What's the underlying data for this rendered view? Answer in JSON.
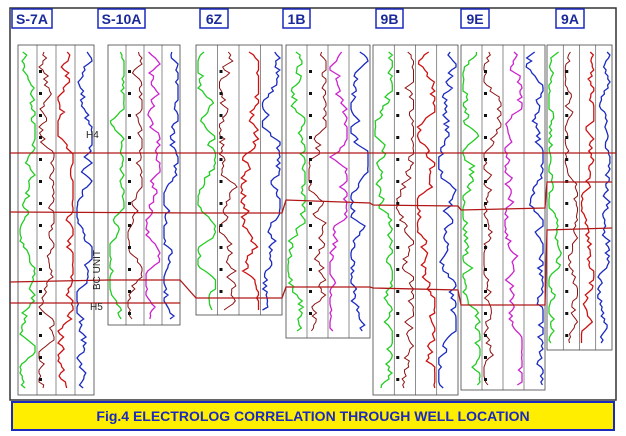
{
  "wells": [
    {
      "label": "S-7A"
    },
    {
      "label": "S-10A"
    },
    {
      "label": "6Z"
    },
    {
      "label": "1B"
    },
    {
      "label": "9B"
    },
    {
      "label": "9E"
    },
    {
      "label": "9A"
    }
  ],
  "horizons": [
    {
      "label": "H4"
    },
    {
      "label": "H5"
    }
  ],
  "unit_label": "BC UNIT",
  "caption": "Fig.4 ELECTROLOG CORRELATION THROUGH WELL LOCATION"
}
